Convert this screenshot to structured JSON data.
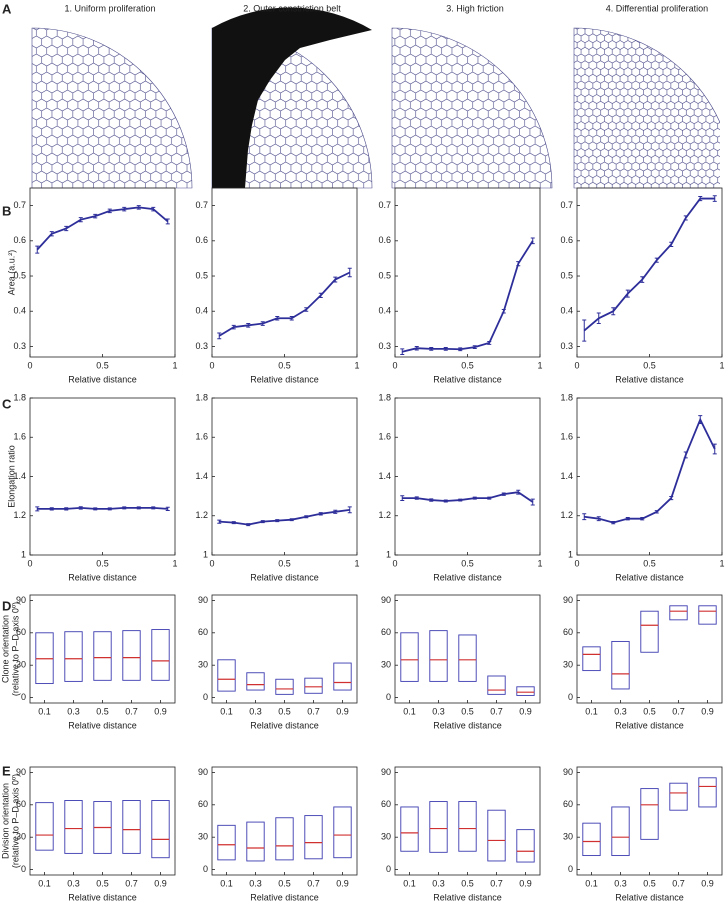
{
  "panel_labels": [
    "A",
    "B",
    "C",
    "D",
    "E"
  ],
  "column_titles": [
    "1. Uniform proliferation",
    "2. Outer constriction belt",
    "3. High friction",
    "4. Differential proliferation"
  ],
  "chart_data": [
    {
      "type": "line",
      "color": "#2e2e9a",
      "x": [
        0.05,
        0.15,
        0.25,
        0.35,
        0.45,
        0.55,
        0.65,
        0.75,
        0.85,
        0.95
      ],
      "values": [
        0.575,
        0.62,
        0.635,
        0.66,
        0.67,
        0.685,
        0.69,
        0.695,
        0.69,
        0.655
      ],
      "errors": [
        0.01,
        0.006,
        0.006,
        0.006,
        0.005,
        0.005,
        0.005,
        0.005,
        0.005,
        0.007
      ],
      "xlim": [
        0,
        1
      ],
      "xticks": [
        0,
        0.5,
        1
      ],
      "ylim": [
        0.27,
        0.75
      ],
      "yticks": [
        0.3,
        0.4,
        0.5,
        0.6,
        0.7
      ],
      "xlabel": "Relative distance",
      "ylabel": [
        "Area (a.u.²)"
      ]
    },
    {
      "type": "line",
      "color": "#2e2e9a",
      "x": [
        0.05,
        0.15,
        0.25,
        0.35,
        0.45,
        0.55,
        0.65,
        0.75,
        0.85,
        0.95
      ],
      "values": [
        0.33,
        0.355,
        0.36,
        0.365,
        0.38,
        0.38,
        0.405,
        0.445,
        0.49,
        0.51
      ],
      "errors": [
        0.008,
        0.005,
        0.005,
        0.005,
        0.005,
        0.005,
        0.005,
        0.006,
        0.007,
        0.012
      ],
      "xlim": [
        0,
        1
      ],
      "xticks": [
        0,
        0.5,
        1
      ],
      "ylim": [
        0.27,
        0.75
      ],
      "yticks": [
        0.3,
        0.4,
        0.5,
        0.6,
        0.7
      ],
      "xlabel": "Relative distance"
    },
    {
      "type": "line",
      "color": "#2e2e9a",
      "x": [
        0.05,
        0.15,
        0.25,
        0.35,
        0.45,
        0.55,
        0.65,
        0.75,
        0.85,
        0.95
      ],
      "values": [
        0.285,
        0.295,
        0.293,
        0.293,
        0.292,
        0.298,
        0.31,
        0.4,
        0.535,
        0.6
      ],
      "errors": [
        0.008,
        0.005,
        0.004,
        0.004,
        0.004,
        0.004,
        0.004,
        0.005,
        0.006,
        0.008
      ],
      "xlim": [
        0,
        1
      ],
      "xticks": [
        0,
        0.5,
        1
      ],
      "ylim": [
        0.27,
        0.75
      ],
      "yticks": [
        0.3,
        0.4,
        0.5,
        0.6,
        0.7
      ],
      "xlabel": "Relative distance"
    },
    {
      "type": "line",
      "color": "#2e2e9a",
      "x": [
        0.05,
        0.15,
        0.25,
        0.35,
        0.45,
        0.55,
        0.65,
        0.75,
        0.85,
        0.95
      ],
      "values": [
        0.345,
        0.38,
        0.4,
        0.45,
        0.49,
        0.545,
        0.59,
        0.665,
        0.72,
        0.72
      ],
      "errors": [
        0.03,
        0.015,
        0.01,
        0.01,
        0.008,
        0.006,
        0.006,
        0.006,
        0.006,
        0.008
      ],
      "xlim": [
        0,
        1
      ],
      "xticks": [
        0,
        0.5,
        1
      ],
      "ylim": [
        0.27,
        0.75
      ],
      "yticks": [
        0.3,
        0.4,
        0.5,
        0.6,
        0.7
      ],
      "xlabel": "Relative distance"
    },
    {
      "type": "line",
      "color": "#2e2e9a",
      "x": [
        0.05,
        0.15,
        0.25,
        0.35,
        0.45,
        0.55,
        0.65,
        0.75,
        0.85,
        0.95
      ],
      "values": [
        1.235,
        1.235,
        1.235,
        1.24,
        1.235,
        1.235,
        1.24,
        1.24,
        1.24,
        1.235
      ],
      "errors": [
        0.01,
        0.006,
        0.006,
        0.006,
        0.005,
        0.005,
        0.005,
        0.005,
        0.005,
        0.008
      ],
      "xlim": [
        0,
        1
      ],
      "xticks": [
        0,
        0.5,
        1
      ],
      "ylim": [
        1,
        1.8
      ],
      "yticks": [
        1,
        1.2,
        1.4,
        1.6,
        1.8
      ],
      "xlabel": "Relative distance",
      "ylabel": [
        "Elongation ratio"
      ]
    },
    {
      "type": "line",
      "color": "#2e2e9a",
      "x": [
        0.05,
        0.15,
        0.25,
        0.35,
        0.45,
        0.55,
        0.65,
        0.75,
        0.85,
        0.95
      ],
      "values": [
        1.17,
        1.165,
        1.155,
        1.17,
        1.175,
        1.18,
        1.195,
        1.21,
        1.22,
        1.23
      ],
      "errors": [
        0.008,
        0.005,
        0.005,
        0.005,
        0.005,
        0.005,
        0.005,
        0.006,
        0.008,
        0.015
      ],
      "xlim": [
        0,
        1
      ],
      "xticks": [
        0,
        0.5,
        1
      ],
      "ylim": [
        1,
        1.8
      ],
      "yticks": [
        1,
        1.2,
        1.4,
        1.6,
        1.8
      ],
      "xlabel": "Relative distance"
    },
    {
      "type": "line",
      "color": "#2e2e9a",
      "x": [
        0.05,
        0.15,
        0.25,
        0.35,
        0.45,
        0.55,
        0.65,
        0.75,
        0.85,
        0.95
      ],
      "values": [
        1.29,
        1.29,
        1.28,
        1.275,
        1.28,
        1.29,
        1.29,
        1.31,
        1.32,
        1.27
      ],
      "errors": [
        0.012,
        0.006,
        0.006,
        0.005,
        0.005,
        0.005,
        0.005,
        0.006,
        0.01,
        0.015
      ],
      "xlim": [
        0,
        1
      ],
      "xticks": [
        0,
        0.5,
        1
      ],
      "ylim": [
        1,
        1.8
      ],
      "yticks": [
        1,
        1.2,
        1.4,
        1.6,
        1.8
      ],
      "xlabel": "Relative distance"
    },
    {
      "type": "line",
      "color": "#2e2e9a",
      "x": [
        0.05,
        0.15,
        0.25,
        0.35,
        0.45,
        0.55,
        0.65,
        0.75,
        0.85,
        0.95
      ],
      "values": [
        1.195,
        1.185,
        1.165,
        1.185,
        1.185,
        1.22,
        1.29,
        1.51,
        1.69,
        1.54
      ],
      "errors": [
        0.015,
        0.01,
        0.006,
        0.006,
        0.006,
        0.006,
        0.008,
        0.015,
        0.02,
        0.025
      ],
      "xlim": [
        0,
        1
      ],
      "xticks": [
        0,
        0.5,
        1
      ],
      "ylim": [
        1,
        1.8
      ],
      "yticks": [
        1,
        1.2,
        1.4,
        1.6,
        1.8
      ],
      "xlabel": "Relative distance"
    },
    {
      "type": "box",
      "color": "#3b3bb0",
      "median_color": "#d03030",
      "categories": [
        "0.1",
        "0.3",
        "0.5",
        "0.7",
        "0.9"
      ],
      "low": [
        13,
        15,
        16,
        16,
        16
      ],
      "median": [
        36,
        36,
        37,
        37,
        34
      ],
      "high": [
        60,
        61,
        61,
        62,
        63
      ],
      "ylim": [
        -5,
        95
      ],
      "yticks": [
        0,
        30,
        60,
        90
      ],
      "xlabel": "Relative distance",
      "ylabel": [
        "Clone orientation",
        "(relative to P–D axis 0º)"
      ]
    },
    {
      "type": "box",
      "color": "#3b3bb0",
      "median_color": "#d03030",
      "categories": [
        "0.1",
        "0.3",
        "0.5",
        "0.7",
        "0.9"
      ],
      "low": [
        6,
        7,
        3,
        4,
        7
      ],
      "median": [
        17,
        12,
        8,
        10,
        14
      ],
      "high": [
        35,
        23,
        17,
        18,
        32
      ],
      "ylim": [
        -5,
        95
      ],
      "yticks": [
        0,
        30,
        60,
        90
      ],
      "xlabel": "Relative distance"
    },
    {
      "type": "box",
      "color": "#3b3bb0",
      "median_color": "#d03030",
      "categories": [
        "0.1",
        "0.3",
        "0.5",
        "0.7",
        "0.9"
      ],
      "low": [
        15,
        15,
        15,
        3,
        2
      ],
      "median": [
        35,
        35,
        35,
        7,
        5
      ],
      "high": [
        60,
        62,
        58,
        20,
        10
      ],
      "ylim": [
        -5,
        95
      ],
      "yticks": [
        0,
        30,
        60,
        90
      ],
      "xlabel": "Relative distance"
    },
    {
      "type": "box",
      "color": "#3b3bb0",
      "median_color": "#d03030",
      "categories": [
        "0.1",
        "0.3",
        "0.5",
        "0.7",
        "0.9"
      ],
      "low": [
        25,
        8,
        42,
        72,
        68
      ],
      "median": [
        40,
        22,
        67,
        80,
        80
      ],
      "high": [
        47,
        52,
        80,
        85,
        85
      ],
      "ylim": [
        -5,
        95
      ],
      "yticks": [
        0,
        30,
        60,
        90
      ],
      "xlabel": "Relative distance"
    },
    {
      "type": "box",
      "color": "#3b3bb0",
      "median_color": "#d03030",
      "categories": [
        "0.1",
        "0.3",
        "0.5",
        "0.7",
        "0.9"
      ],
      "low": [
        18,
        15,
        15,
        15,
        11
      ],
      "median": [
        32,
        38,
        39,
        37,
        28
      ],
      "high": [
        62,
        64,
        63,
        64,
        64
      ],
      "ylim": [
        -5,
        95
      ],
      "yticks": [
        0,
        30,
        60,
        90
      ],
      "xlabel": "Relative distance",
      "ylabel": [
        "Division orientation",
        "(relative to P–D axis 0º)"
      ]
    },
    {
      "type": "box",
      "color": "#3b3bb0",
      "median_color": "#d03030",
      "categories": [
        "0.1",
        "0.3",
        "0.5",
        "0.7",
        "0.9"
      ],
      "low": [
        9,
        8,
        9,
        10,
        11
      ],
      "median": [
        23,
        20,
        22,
        25,
        32
      ],
      "high": [
        41,
        44,
        48,
        50,
        58
      ],
      "ylim": [
        -5,
        95
      ],
      "yticks": [
        0,
        30,
        60,
        90
      ],
      "xlabel": "Relative distance"
    },
    {
      "type": "box",
      "color": "#3b3bb0",
      "median_color": "#d03030",
      "categories": [
        "0.1",
        "0.3",
        "0.5",
        "0.7",
        "0.9"
      ],
      "low": [
        17,
        16,
        17,
        8,
        7
      ],
      "median": [
        34,
        38,
        38,
        27,
        17
      ],
      "high": [
        58,
        63,
        63,
        55,
        37
      ],
      "ylim": [
        -5,
        95
      ],
      "yticks": [
        0,
        30,
        60,
        90
      ],
      "xlabel": "Relative distance"
    },
    {
      "type": "box",
      "color": "#3b3bb0",
      "median_color": "#d03030",
      "categories": [
        "0.1",
        "0.3",
        "0.5",
        "0.7",
        "0.9"
      ],
      "low": [
        13,
        13,
        28,
        55,
        58
      ],
      "median": [
        26,
        30,
        60,
        71,
        77
      ],
      "high": [
        43,
        58,
        75,
        80,
        85
      ],
      "ylim": [
        -5,
        95
      ],
      "yticks": [
        0,
        30,
        60,
        90
      ],
      "xlabel": "Relative distance"
    }
  ]
}
